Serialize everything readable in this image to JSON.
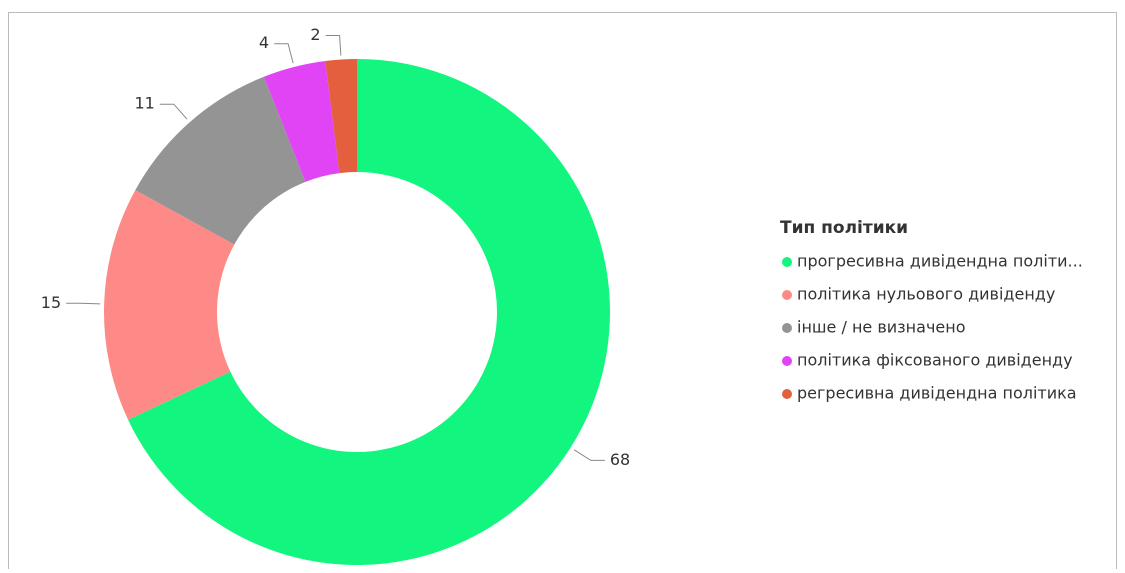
{
  "chart_data": {
    "type": "donut",
    "legend_title": "Тип політики",
    "categories": [
      "прогресивна дивідендна політи...",
      "політика нульового дивіденду",
      "інше / не визначено",
      "політика фіксованого дивіденду",
      "регресивна дивідендна політика"
    ],
    "values": [
      68,
      15,
      11,
      4,
      2
    ],
    "colors": [
      "#12f57f",
      "#fe8a87",
      "#949494",
      "#e044f5",
      "#e35f3e"
    ],
    "legend": "right"
  }
}
